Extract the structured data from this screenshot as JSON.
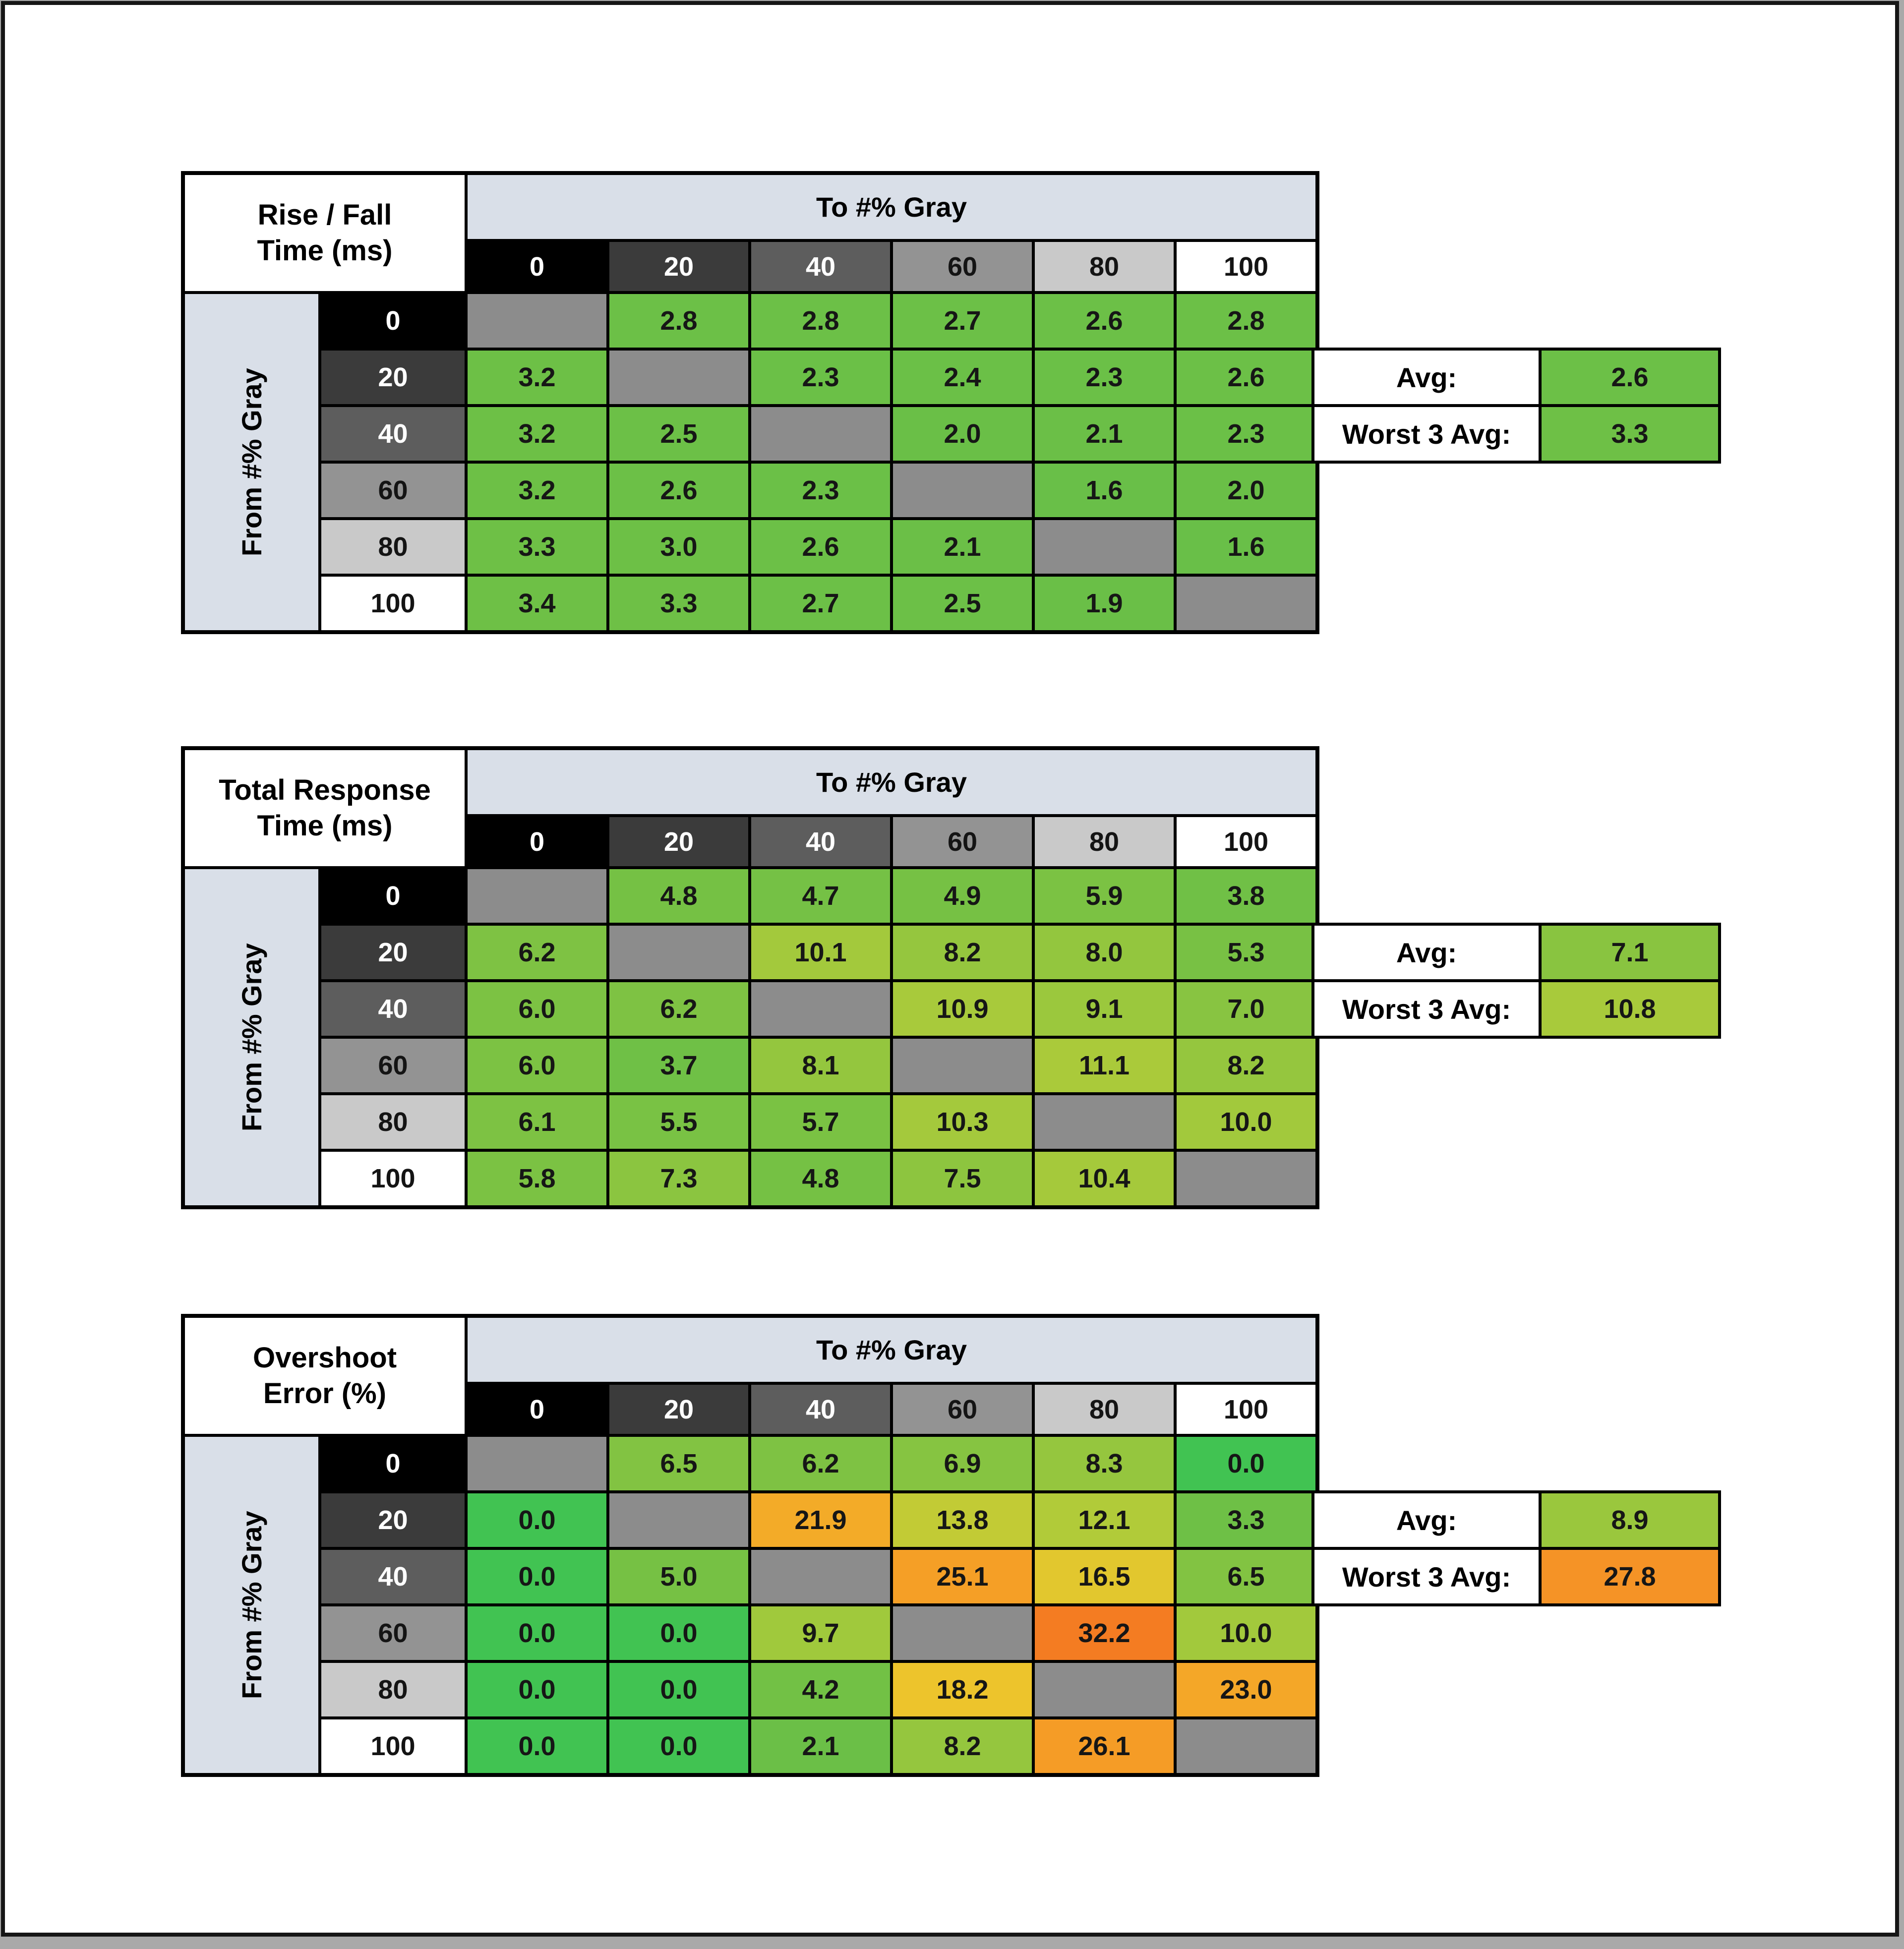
{
  "palette": {
    "page_edge": "#a9a9a9",
    "frame_border": "#161616",
    "surface": "#ffffff",
    "header_band_blue": "#d9dfe8",
    "diagonal_gray": "#8c8c8c",
    "grid_line_black": "#000000"
  },
  "gray_axis": [
    {
      "label": "0",
      "bg": "#000000",
      "text": "#ffffff"
    },
    {
      "label": "20",
      "bg": "#3b3b3b",
      "text": "#ffffff"
    },
    {
      "label": "40",
      "bg": "#5d5d5d",
      "text": "#ffffff"
    },
    {
      "label": "60",
      "bg": "#939393",
      "text": "#141414"
    },
    {
      "label": "80",
      "bg": "#c9c9c9",
      "text": "#141414"
    },
    {
      "label": "100",
      "bg": "#ffffff",
      "text": "#141414"
    }
  ],
  "color_scale": {
    "anchors": [
      [
        0,
        "#41c352"
      ],
      [
        1,
        "#68bf48"
      ],
      [
        3.5,
        "#6ec046"
      ],
      [
        6,
        "#7cc243"
      ],
      [
        8,
        "#93c63e"
      ],
      [
        10,
        "#a2c93c"
      ],
      [
        12,
        "#b0cb39"
      ],
      [
        14,
        "#c4cb34"
      ],
      [
        16.5,
        "#e2c72e"
      ],
      [
        18.5,
        "#efc42c"
      ],
      [
        22,
        "#f3aa28"
      ],
      [
        26,
        "#f59c26"
      ],
      [
        28,
        "#f59226"
      ],
      [
        32.5,
        "#f47a22"
      ]
    ]
  },
  "chart_data": [
    {
      "type": "heatmap",
      "title": "Rise / Fall Time (ms)",
      "title_line1": "Rise / Fall",
      "title_line2": "Time (ms)",
      "col_axis_label": "To #% Gray",
      "row_axis_label": "From #% Gray",
      "categories": [
        "0",
        "20",
        "40",
        "60",
        "80",
        "100"
      ],
      "values": [
        [
          null,
          2.8,
          2.8,
          2.7,
          2.6,
          2.8
        ],
        [
          3.2,
          null,
          2.3,
          2.4,
          2.3,
          2.6
        ],
        [
          3.2,
          2.5,
          null,
          2.0,
          2.1,
          2.3
        ],
        [
          3.2,
          2.6,
          2.3,
          null,
          1.6,
          2.0
        ],
        [
          3.3,
          3.0,
          2.6,
          2.1,
          null,
          1.6
        ],
        [
          3.4,
          3.3,
          2.7,
          2.5,
          1.9,
          null
        ]
      ],
      "avg_label": "Avg:",
      "avg": 2.6,
      "worst3_label": "Worst 3 Avg:",
      "worst3": 3.3
    },
    {
      "type": "heatmap",
      "title": "Total Response Time (ms)",
      "title_line1": "Total Response",
      "title_line2": "Time (ms)",
      "col_axis_label": "To #% Gray",
      "row_axis_label": "From #% Gray",
      "categories": [
        "0",
        "20",
        "40",
        "60",
        "80",
        "100"
      ],
      "values": [
        [
          null,
          4.8,
          4.7,
          4.9,
          5.9,
          3.8
        ],
        [
          6.2,
          null,
          10.1,
          8.2,
          8.0,
          5.3
        ],
        [
          6.0,
          6.2,
          null,
          10.9,
          9.1,
          7.0
        ],
        [
          6.0,
          3.7,
          8.1,
          null,
          11.1,
          8.2
        ],
        [
          6.1,
          5.5,
          5.7,
          10.3,
          null,
          10.0
        ],
        [
          5.8,
          7.3,
          4.8,
          7.5,
          10.4,
          null
        ]
      ],
      "avg_label": "Avg:",
      "avg": 7.1,
      "worst3_label": "Worst 3 Avg:",
      "worst3": 10.8
    },
    {
      "type": "heatmap",
      "title": "Overshoot Error (%)",
      "title_line1": "Overshoot",
      "title_line2": "Error (%)",
      "col_axis_label": "To #% Gray",
      "row_axis_label": "From #% Gray",
      "categories": [
        "0",
        "20",
        "40",
        "60",
        "80",
        "100"
      ],
      "values": [
        [
          null,
          6.5,
          6.2,
          6.9,
          8.3,
          0.0
        ],
        [
          0.0,
          null,
          21.9,
          13.8,
          12.1,
          3.3
        ],
        [
          0.0,
          5.0,
          null,
          25.1,
          16.5,
          6.5
        ],
        [
          0.0,
          0.0,
          9.7,
          null,
          32.2,
          10.0
        ],
        [
          0.0,
          0.0,
          4.2,
          18.2,
          null,
          23.0
        ],
        [
          0.0,
          0.0,
          2.1,
          8.2,
          26.1,
          null
        ]
      ],
      "avg_label": "Avg:",
      "avg": 8.9,
      "worst3_label": "Worst 3 Avg:",
      "worst3": 27.8
    }
  ]
}
